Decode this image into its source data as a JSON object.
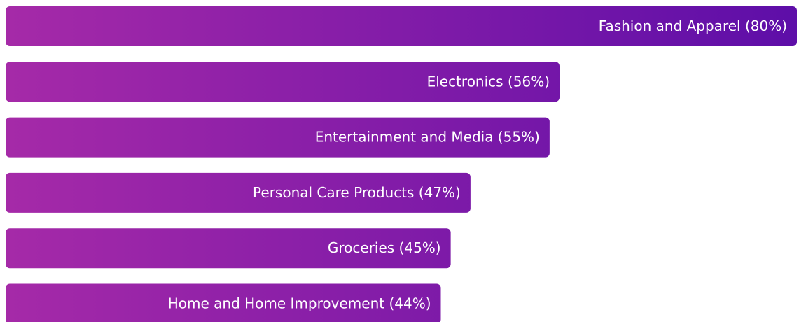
{
  "chart_data": {
    "type": "bar",
    "orientation": "horizontal",
    "categories": [
      "Fashion and Apparel (80%)",
      "Electronics (56%)",
      "Entertainment and Media (55%)",
      "Personal Care Products (47%)",
      "Groceries (45%)",
      "Home and Home Improvement (44%)"
    ],
    "values": [
      80,
      56,
      55,
      47,
      45,
      44
    ],
    "color": [
      "#a62aa8",
      "#5e0ea8"
    ],
    "xlim": [
      0,
      80
    ]
  }
}
